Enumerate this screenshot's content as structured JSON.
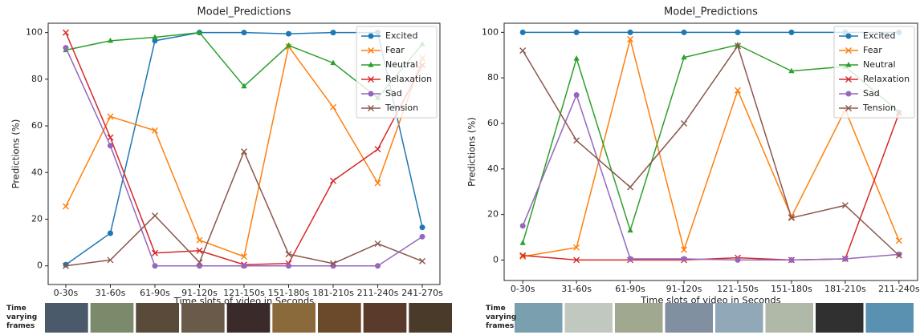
{
  "chart_data": [
    {
      "type": "line",
      "title": "Model_Predictions",
      "x_label": "Time slots of video in Seconds",
      "y_label": "Predictions (%)",
      "frames_label": "Time varying frames",
      "categories": [
        "0-30s",
        "31-60s",
        "61-90s",
        "91-120s",
        "121-150s",
        "151-180s",
        "181-210s",
        "211-240s",
        "241-270s"
      ],
      "ylim": [
        -8,
        104
      ],
      "yticks": [
        0,
        20,
        40,
        60,
        80,
        100
      ],
      "legend": "upper right",
      "series": [
        {
          "name": "Excited",
          "color": "#1f77b4",
          "marker": "circle",
          "values": [
            0.5,
            14,
            96.5,
            100,
            100,
            99.5,
            100,
            100,
            16.5
          ]
        },
        {
          "name": "Fear",
          "color": "#ff7f0e",
          "marker": "x",
          "values": [
            25.5,
            64,
            58,
            11,
            4,
            94,
            68,
            35.5,
            89
          ]
        },
        {
          "name": "Neutral",
          "color": "#2ca02c",
          "marker": "triangle",
          "values": [
            92.5,
            96.5,
            98,
            100,
            77,
            94.5,
            87,
            72,
            95
          ]
        },
        {
          "name": "Relaxation",
          "color": "#d62728",
          "marker": "x",
          "values": [
            100,
            55,
            5.5,
            6.5,
            0.5,
            1,
            36.5,
            50,
            86
          ]
        },
        {
          "name": "Sad",
          "color": "#9467bd",
          "marker": "circle",
          "values": [
            93.5,
            51.5,
            0,
            0,
            0,
            0,
            0,
            0,
            12.5
          ]
        },
        {
          "name": "Tension",
          "color": "#8c564b",
          "marker": "x",
          "values": [
            0,
            2.5,
            21.5,
            1.5,
            49,
            5,
            1,
            9.5,
            2
          ]
        }
      ]
    },
    {
      "type": "line",
      "title": "Model_Predictions",
      "x_label": "Time slots of video in Seconds",
      "y_label": "Predictions (%)",
      "frames_label": "Time varying frames",
      "categories": [
        "0-30s",
        "31-60s",
        "61-90s",
        "91-120s",
        "121-150s",
        "151-180s",
        "181-210s",
        "211-240s"
      ],
      "ylim": [
        -9,
        104
      ],
      "yticks": [
        0,
        20,
        40,
        60,
        80,
        100
      ],
      "legend": "upper right",
      "series": [
        {
          "name": "Excited",
          "color": "#1f77b4",
          "marker": "circle",
          "values": [
            100,
            100,
            100,
            100,
            100,
            100,
            100,
            100
          ]
        },
        {
          "name": "Fear",
          "color": "#ff7f0e",
          "marker": "x",
          "values": [
            1.5,
            5.5,
            97,
            4.5,
            74.5,
            19,
            66,
            8.5
          ]
        },
        {
          "name": "Neutral",
          "color": "#2ca02c",
          "marker": "triangle",
          "values": [
            7.5,
            88.5,
            13,
            89,
            94.5,
            83,
            85,
            65
          ]
        },
        {
          "name": "Relaxation",
          "color": "#d62728",
          "marker": "x",
          "values": [
            2,
            0,
            0,
            0,
            1,
            0,
            0.5,
            64.5
          ]
        },
        {
          "name": "Sad",
          "color": "#9467bd",
          "marker": "circle",
          "values": [
            15,
            72.5,
            0.5,
            0.5,
            0,
            0,
            0.5,
            2.5
          ]
        },
        {
          "name": "Tension",
          "color": "#8c564b",
          "marker": "x",
          "values": [
            92,
            52.5,
            32,
            60,
            94,
            18.5,
            24,
            2
          ]
        }
      ]
    }
  ]
}
